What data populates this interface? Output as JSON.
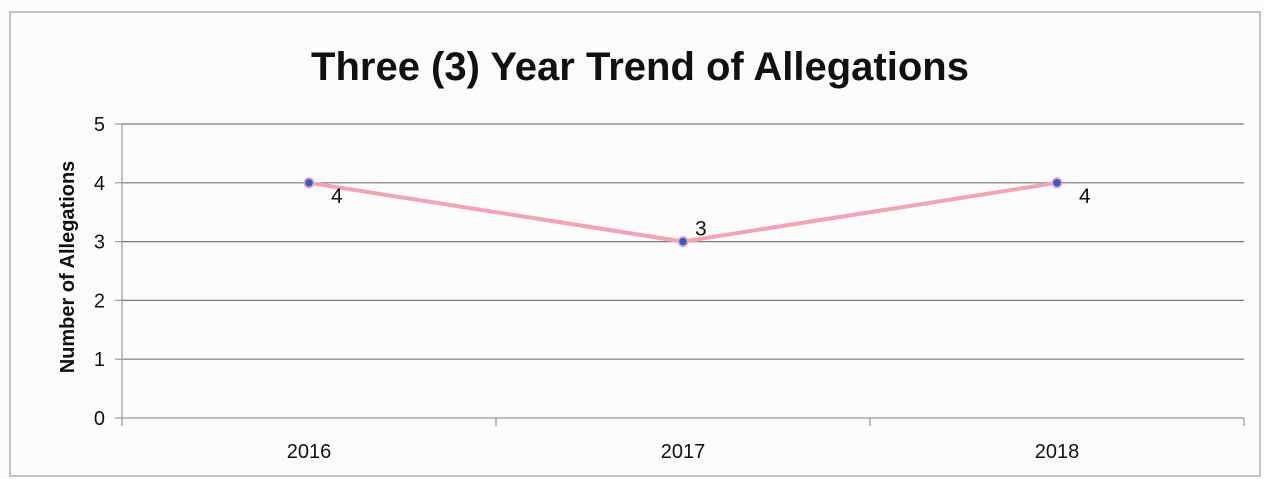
{
  "chart_data": {
    "type": "line",
    "title": "Three (3) Year Trend of Allegations",
    "xlabel": "",
    "ylabel": "Number of Allegations",
    "categories": [
      "2016",
      "2017",
      "2018"
    ],
    "series": [
      {
        "values": [
          4,
          3,
          4
        ],
        "data_labels": [
          "4",
          "3",
          "4"
        ]
      }
    ],
    "ylim": [
      0,
      5
    ],
    "yticks": [
      "0",
      "1",
      "2",
      "3",
      "4",
      "5"
    ],
    "grid": "horizontal",
    "legend": "none",
    "colors": {
      "line": "#f4a3b4",
      "marker": "#2b5fc9",
      "grid": "#7a7a7a",
      "frame": "#9a9a9a"
    }
  }
}
